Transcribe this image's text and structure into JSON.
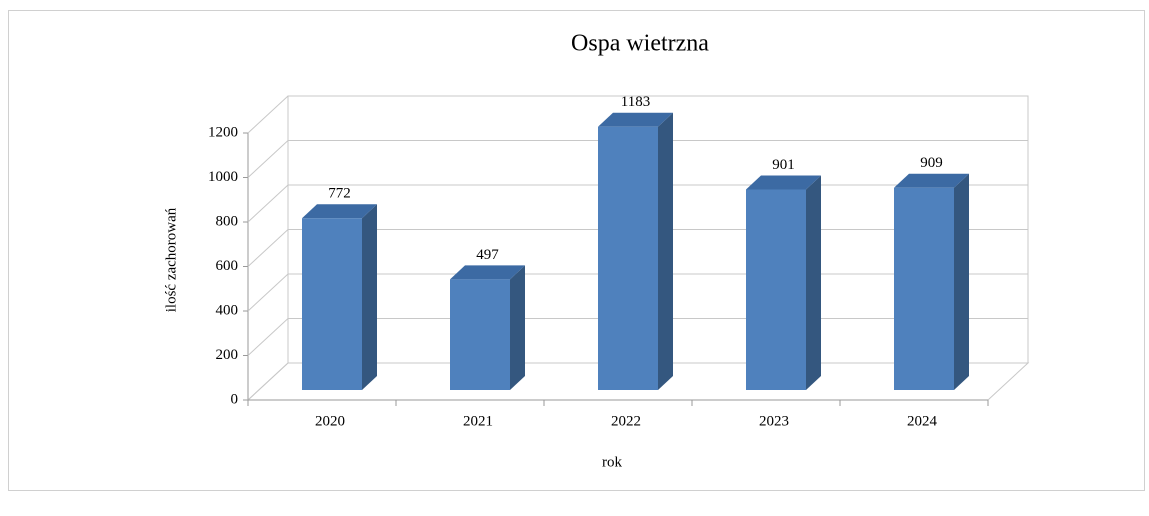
{
  "chart_data": {
    "type": "bar3d",
    "title": "Ospa wietrzna",
    "categories": [
      "2020",
      "2021",
      "2022",
      "2023",
      "2024"
    ],
    "values": [
      772,
      497,
      1183,
      901,
      909
    ],
    "color": "#4f81bd",
    "xlabel": "rok",
    "ylabel": "ilość zachorowań",
    "ylim": [
      0,
      1200
    ],
    "yticks": [
      0,
      200,
      400,
      600,
      800,
      1000,
      1200
    ],
    "grid": true
  }
}
